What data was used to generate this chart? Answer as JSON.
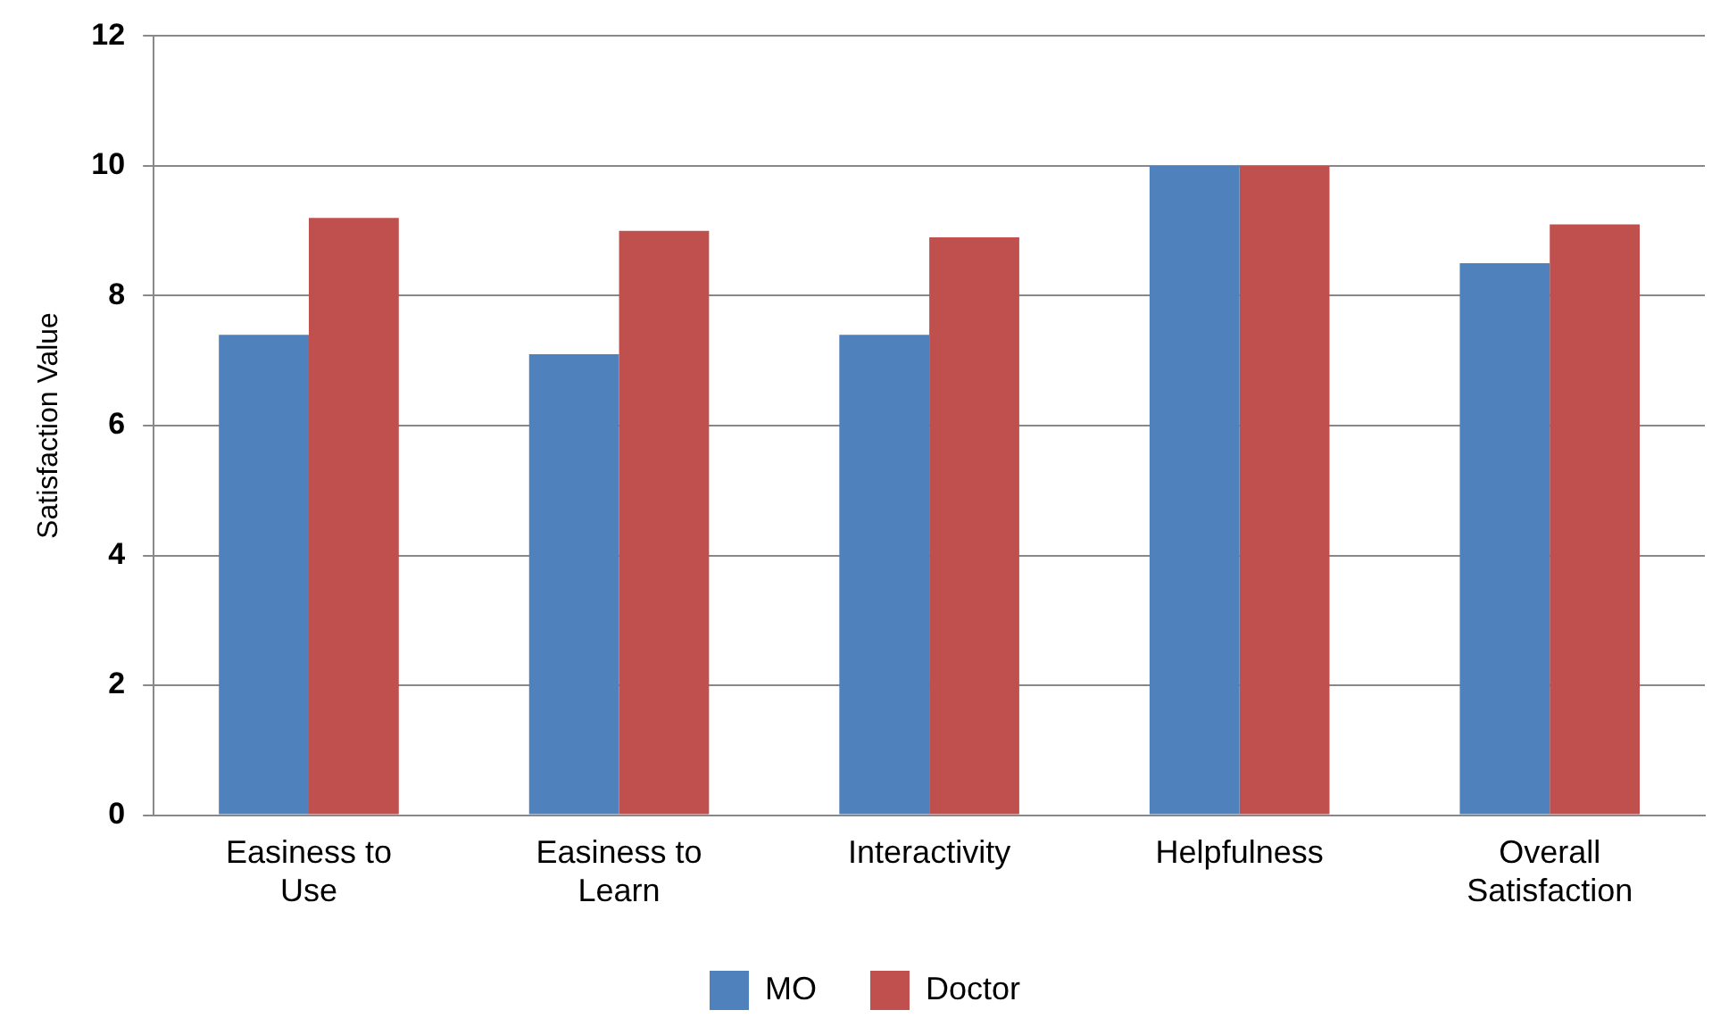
{
  "chart_data": {
    "type": "bar",
    "ylabel": "Satisfaction Value",
    "categories": [
      "Easiness to Use",
      "Easiness to Learn",
      "Interactivity",
      "Helpfulness",
      "Overall Satisfaction"
    ],
    "series": [
      {
        "name": "MO",
        "color": "#4f81bd",
        "values": [
          7.4,
          7.1,
          7.4,
          10,
          8.5
        ]
      },
      {
        "name": "Doctor",
        "color": "#c0504d",
        "values": [
          9.2,
          9.0,
          8.9,
          10,
          9.1
        ]
      }
    ],
    "ylim": [
      0,
      12
    ],
    "yticks": [
      0,
      2,
      4,
      6,
      8,
      10,
      12
    ],
    "grid": "y",
    "legend": "bottom"
  }
}
